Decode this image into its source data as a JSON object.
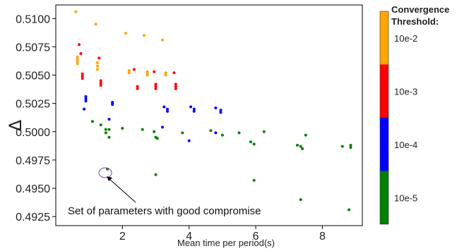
{
  "chart_data": {
    "type": "scatter",
    "title": "",
    "xlabel": "Mean time per period(s)",
    "ylabel": "Δ",
    "xlim": [
      0,
      9.2
    ],
    "ylim": [
      0.4917,
      0.5112
    ],
    "xticks": [
      {
        "value": 2,
        "label": "2"
      },
      {
        "value": 4,
        "label": "4"
      },
      {
        "value": 6,
        "label": "6"
      },
      {
        "value": 8,
        "label": "8"
      }
    ],
    "yticks": [
      {
        "value": 0.4925,
        "label": "0.4925"
      },
      {
        "value": 0.495,
        "label": "0.4950"
      },
      {
        "value": 0.4975,
        "label": "0.4975"
      },
      {
        "value": 0.5,
        "label": "0.5000"
      },
      {
        "value": 0.5025,
        "label": "0.5025"
      },
      {
        "value": 0.505,
        "label": "0.5050"
      },
      {
        "value": 0.5075,
        "label": "0.5075"
      },
      {
        "value": 0.51,
        "label": "0.5100"
      }
    ],
    "grid": false,
    "colorbar": {
      "title_lines": [
        "Convergence",
        "Threshold:"
      ],
      "bands": [
        {
          "label": "10e-2",
          "color": "#FFA500"
        },
        {
          "label": "10e-3",
          "color": "#FF0000"
        },
        {
          "label": "10e-4",
          "color": "#0000FF"
        },
        {
          "label": "10e-5",
          "color": "#008000"
        }
      ]
    },
    "series": [
      {
        "label": "10e-2",
        "color": "#FFA500",
        "points": [
          [
            0.6,
            0.5106
          ],
          [
            0.65,
            0.5066
          ],
          [
            0.65,
            0.5064
          ],
          [
            0.65,
            0.5062
          ],
          [
            0.65,
            0.506
          ],
          [
            1.2,
            0.5095
          ],
          [
            1.25,
            0.5061
          ],
          [
            1.25,
            0.5058
          ],
          [
            1.25,
            0.5055
          ],
          [
            2.1,
            0.5087
          ],
          [
            2.2,
            0.5054
          ],
          [
            2.2,
            0.5052
          ],
          [
            2.65,
            0.5085
          ],
          [
            2.75,
            0.5053
          ],
          [
            2.75,
            0.5051
          ],
          [
            2.75,
            0.505
          ],
          [
            3.2,
            0.5081
          ],
          [
            3.3,
            0.5052
          ],
          [
            3.3,
            0.505
          ]
        ]
      },
      {
        "label": "10e-3",
        "color": "#FF0000",
        "points": [
          [
            0.7,
            0.5077
          ],
          [
            0.75,
            0.5069
          ],
          [
            0.8,
            0.5051
          ],
          [
            0.8,
            0.5049
          ],
          [
            0.8,
            0.5047
          ],
          [
            1.3,
            0.5065
          ],
          [
            1.35,
            0.5045
          ],
          [
            1.35,
            0.5043
          ],
          [
            1.35,
            0.5041
          ],
          [
            2.35,
            0.5055
          ],
          [
            2.45,
            0.504
          ],
          [
            2.45,
            0.5038
          ],
          [
            2.95,
            0.5053
          ],
          [
            3.0,
            0.5042
          ],
          [
            3.0,
            0.504
          ],
          [
            3.0,
            0.5038
          ],
          [
            3.55,
            0.5052
          ],
          [
            3.6,
            0.5042
          ],
          [
            3.6,
            0.504
          ],
          [
            3.6,
            0.5038
          ]
        ]
      },
      {
        "label": "10e-4",
        "color": "#0000FF",
        "points": [
          [
            0.85,
            0.502
          ],
          [
            0.9,
            0.5031
          ],
          [
            0.9,
            0.5029
          ],
          [
            0.9,
            0.5027
          ],
          [
            1.6,
            0.5011
          ],
          [
            1.7,
            0.5026
          ],
          [
            1.7,
            0.5025
          ],
          [
            1.7,
            0.5024
          ],
          [
            3.2,
            0.5004
          ],
          [
            3.25,
            0.5022
          ],
          [
            3.35,
            0.502
          ],
          [
            3.35,
            0.5018
          ],
          [
            4.0,
            0.4992
          ],
          [
            4.05,
            0.5022
          ],
          [
            4.15,
            0.502
          ],
          [
            4.15,
            0.5018
          ],
          [
            4.8,
            0.4999
          ],
          [
            4.8,
            0.5021
          ],
          [
            4.95,
            0.5019
          ],
          [
            4.95,
            0.5017
          ]
        ]
      },
      {
        "label": "10e-5",
        "color": "#008000",
        "points": [
          [
            1.1,
            0.5009
          ],
          [
            1.35,
            0.5006
          ],
          [
            1.5,
            0.5002
          ],
          [
            1.5,
            0.4999
          ],
          [
            1.6,
            0.5002
          ],
          [
            1.6,
            0.4995
          ],
          [
            1.55,
            0.4967
          ],
          [
            2.0,
            0.5003
          ],
          [
            2.6,
            0.5002
          ],
          [
            2.95,
            0.5
          ],
          [
            3.0,
            0.4995
          ],
          [
            3.05,
            0.4994
          ],
          [
            3.0,
            0.4962
          ],
          [
            3.8,
            0.4999
          ],
          [
            4.65,
            0.5001
          ],
          [
            5.0,
            0.4997
          ],
          [
            5.5,
            0.4999
          ],
          [
            5.85,
            0.4991
          ],
          [
            5.95,
            0.4989
          ],
          [
            5.95,
            0.4957
          ],
          [
            6.25,
            0.5
          ],
          [
            7.25,
            0.4988
          ],
          [
            7.35,
            0.4987
          ],
          [
            7.4,
            0.4985
          ],
          [
            7.35,
            0.494
          ],
          [
            7.5,
            0.4997
          ],
          [
            8.6,
            0.4987
          ],
          [
            8.85,
            0.4988
          ],
          [
            8.85,
            0.4986
          ],
          [
            8.8,
            0.4931
          ]
        ]
      }
    ],
    "annotation": {
      "text": "Set of parameters with good compromise",
      "target": [
        1.55,
        0.4967
      ]
    }
  }
}
